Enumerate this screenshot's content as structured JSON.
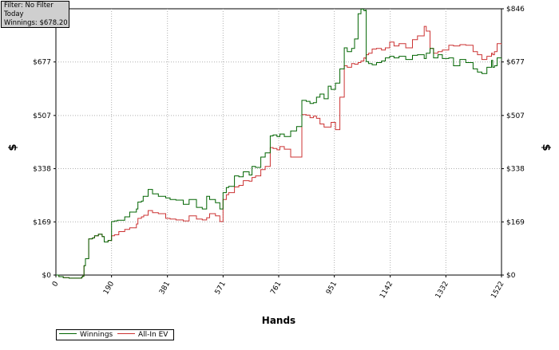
{
  "info": {
    "filter": "Filter: No Filter",
    "period": "Today",
    "winnings": "Winnings: $678.20"
  },
  "chart_data": {
    "type": "line",
    "title": "",
    "xlabel": "Hands",
    "ylabel_left": "$",
    "ylabel_right": "$",
    "xlim": [
      0,
      1522
    ],
    "ylim": [
      0,
      846
    ],
    "x_ticks": [
      0,
      190,
      381,
      571,
      761,
      951,
      1142,
      1332,
      1522
    ],
    "y_ticks": [
      0,
      169,
      338,
      507,
      677,
      846
    ],
    "y_tick_labels": [
      "$0",
      "$169",
      "$338",
      "$507",
      "$677",
      "$846"
    ],
    "grid": true,
    "legend_position": "bottom-left",
    "series": [
      {
        "name": "Winnings",
        "color": "#006400",
        "points": [
          [
            0,
            0
          ],
          [
            10,
            -5
          ],
          [
            25,
            -8
          ],
          [
            45,
            -10
          ],
          [
            88,
            -6
          ],
          [
            92,
            -3
          ],
          [
            96,
            30
          ],
          [
            101,
            52
          ],
          [
            112,
            115
          ],
          [
            125,
            118
          ],
          [
            132,
            125
          ],
          [
            145,
            130
          ],
          [
            158,
            122
          ],
          [
            165,
            105
          ],
          [
            178,
            110
          ],
          [
            190,
            170
          ],
          [
            200,
            172
          ],
          [
            210,
            174
          ],
          [
            235,
            185
          ],
          [
            252,
            200
          ],
          [
            275,
            210
          ],
          [
            280,
            232
          ],
          [
            292,
            235
          ],
          [
            298,
            250
          ],
          [
            315,
            272
          ],
          [
            330,
            258
          ],
          [
            350,
            250
          ],
          [
            375,
            245
          ],
          [
            390,
            240
          ],
          [
            410,
            238
          ],
          [
            435,
            225
          ],
          [
            455,
            240
          ],
          [
            480,
            215
          ],
          [
            500,
            210
          ],
          [
            515,
            250
          ],
          [
            525,
            240
          ],
          [
            545,
            230
          ],
          [
            560,
            210
          ],
          [
            571,
            262
          ],
          [
            582,
            278
          ],
          [
            590,
            282
          ],
          [
            610,
            315
          ],
          [
            625,
            312
          ],
          [
            640,
            328
          ],
          [
            660,
            318
          ],
          [
            670,
            345
          ],
          [
            682,
            342
          ],
          [
            700,
            375
          ],
          [
            715,
            388
          ],
          [
            732,
            442
          ],
          [
            742,
            445
          ],
          [
            755,
            440
          ],
          [
            765,
            448
          ],
          [
            780,
            440
          ],
          [
            802,
            458
          ],
          [
            822,
            472
          ],
          [
            840,
            555
          ],
          [
            855,
            552
          ],
          [
            868,
            545
          ],
          [
            880,
            548
          ],
          [
            890,
            565
          ],
          [
            902,
            575
          ],
          [
            916,
            560
          ],
          [
            930,
            600
          ],
          [
            940,
            590
          ],
          [
            955,
            610
          ],
          [
            970,
            655
          ],
          [
            985,
            722
          ],
          [
            995,
            710
          ],
          [
            1010,
            720
          ],
          [
            1020,
            750
          ],
          [
            1032,
            830
          ],
          [
            1042,
            845
          ],
          [
            1052,
            840
          ],
          [
            1058,
            842
          ],
          [
            1060,
            678
          ],
          [
            1068,
            672
          ],
          [
            1080,
            668
          ],
          [
            1095,
            675
          ],
          [
            1112,
            680
          ],
          [
            1125,
            690
          ],
          [
            1140,
            695
          ],
          [
            1155,
            690
          ],
          [
            1172,
            695
          ],
          [
            1195,
            685
          ],
          [
            1218,
            698
          ],
          [
            1235,
            700
          ],
          [
            1258,
            688
          ],
          [
            1265,
            705
          ],
          [
            1278,
            720
          ],
          [
            1290,
            690
          ],
          [
            1305,
            700
          ],
          [
            1320,
            688
          ],
          [
            1342,
            690
          ],
          [
            1358,
            665
          ],
          [
            1380,
            685
          ],
          [
            1400,
            675
          ],
          [
            1425,
            655
          ],
          [
            1440,
            645
          ],
          [
            1455,
            640
          ],
          [
            1472,
            660
          ],
          [
            1488,
            682
          ],
          [
            1492,
            660
          ],
          [
            1498,
            665
          ],
          [
            1507,
            690
          ],
          [
            1522,
            682
          ]
        ]
      },
      {
        "name": "All-In EV",
        "color": "#cc3333",
        "points": [
          [
            0,
            0
          ],
          [
            10,
            -5
          ],
          [
            25,
            -8
          ],
          [
            45,
            -10
          ],
          [
            88,
            -6
          ],
          [
            92,
            -3
          ],
          [
            96,
            30
          ],
          [
            101,
            52
          ],
          [
            112,
            115
          ],
          [
            125,
            118
          ],
          [
            132,
            125
          ],
          [
            145,
            130
          ],
          [
            158,
            122
          ],
          [
            165,
            105
          ],
          [
            178,
            110
          ],
          [
            190,
            125
          ],
          [
            200,
            128
          ],
          [
            215,
            138
          ],
          [
            235,
            145
          ],
          [
            252,
            150
          ],
          [
            275,
            162
          ],
          [
            280,
            180
          ],
          [
            292,
            185
          ],
          [
            300,
            190
          ],
          [
            315,
            205
          ],
          [
            330,
            198
          ],
          [
            350,
            195
          ],
          [
            375,
            180
          ],
          [
            390,
            178
          ],
          [
            410,
            175
          ],
          [
            435,
            172
          ],
          [
            455,
            188
          ],
          [
            480,
            178
          ],
          [
            500,
            175
          ],
          [
            515,
            182
          ],
          [
            525,
            195
          ],
          [
            545,
            188
          ],
          [
            560,
            170
          ],
          [
            571,
            240
          ],
          [
            582,
            255
          ],
          [
            590,
            262
          ],
          [
            610,
            280
          ],
          [
            625,
            285
          ],
          [
            640,
            300
          ],
          [
            660,
            298
          ],
          [
            670,
            310
          ],
          [
            682,
            315
          ],
          [
            700,
            335
          ],
          [
            715,
            345
          ],
          [
            732,
            405
          ],
          [
            742,
            402
          ],
          [
            755,
            398
          ],
          [
            765,
            408
          ],
          [
            780,
            400
          ],
          [
            802,
            375
          ],
          [
            822,
            375
          ],
          [
            840,
            510
          ],
          [
            855,
            508
          ],
          [
            868,
            500
          ],
          [
            880,
            505
          ],
          [
            890,
            498
          ],
          [
            902,
            480
          ],
          [
            916,
            470
          ],
          [
            930,
            470
          ],
          [
            940,
            485
          ],
          [
            955,
            462
          ],
          [
            970,
            565
          ],
          [
            985,
            665
          ],
          [
            995,
            660
          ],
          [
            1010,
            672
          ],
          [
            1020,
            670
          ],
          [
            1032,
            675
          ],
          [
            1042,
            680
          ],
          [
            1052,
            690
          ],
          [
            1058,
            688
          ],
          [
            1060,
            700
          ],
          [
            1068,
            705
          ],
          [
            1080,
            718
          ],
          [
            1095,
            720
          ],
          [
            1112,
            715
          ],
          [
            1125,
            722
          ],
          [
            1140,
            740
          ],
          [
            1155,
            728
          ],
          [
            1172,
            735
          ],
          [
            1195,
            722
          ],
          [
            1218,
            748
          ],
          [
            1235,
            760
          ],
          [
            1258,
            790
          ],
          [
            1265,
            775
          ],
          [
            1278,
            720
          ],
          [
            1290,
            705
          ],
          [
            1305,
            710
          ],
          [
            1320,
            715
          ],
          [
            1342,
            730
          ],
          [
            1358,
            728
          ],
          [
            1380,
            732
          ],
          [
            1400,
            730
          ],
          [
            1425,
            710
          ],
          [
            1440,
            700
          ],
          [
            1455,
            685
          ],
          [
            1472,
            695
          ],
          [
            1488,
            705
          ],
          [
            1492,
            700
          ],
          [
            1498,
            710
          ],
          [
            1507,
            735
          ],
          [
            1522,
            732
          ]
        ]
      }
    ]
  }
}
